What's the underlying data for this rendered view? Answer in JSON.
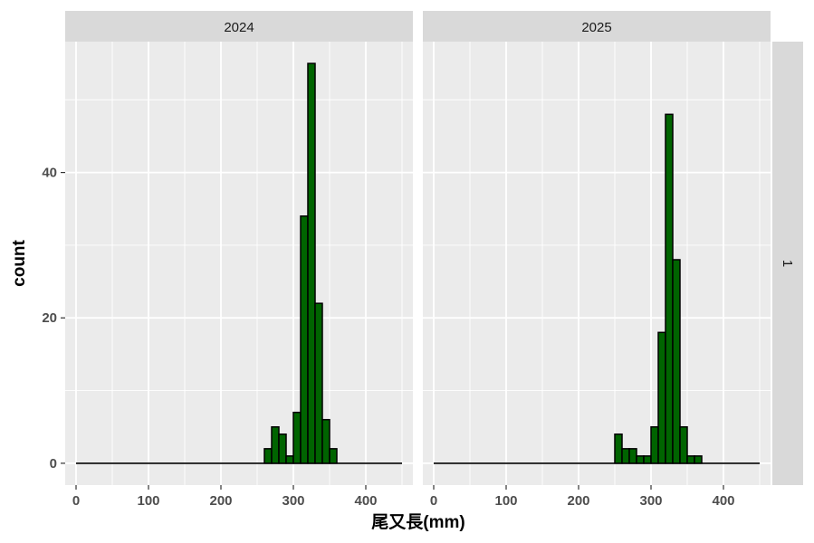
{
  "chart_data": {
    "type": "bar",
    "subtype": "histogram",
    "xlabel": "尾又長(mm)",
    "ylabel": "count",
    "xlim": [
      -15,
      465
    ],
    "ylim": [
      -3,
      58
    ],
    "x_ticks": [
      0,
      100,
      200,
      300,
      400
    ],
    "y_ticks": [
      0,
      20,
      40
    ],
    "bin_width": 10,
    "bins_x": [
      0,
      450
    ],
    "grid": true,
    "legend": "none",
    "row_strip": "1",
    "colors": {
      "fill": "#006400",
      "outline": "#000000",
      "panel": "#ebebeb",
      "strip": "#d9d9d9",
      "grid": "#ffffff"
    },
    "panels": [
      {
        "label": "2024",
        "bars": [
          {
            "x0": 260,
            "x1": 270,
            "count": 2
          },
          {
            "x0": 270,
            "x1": 280,
            "count": 5
          },
          {
            "x0": 280,
            "x1": 290,
            "count": 4
          },
          {
            "x0": 290,
            "x1": 300,
            "count": 1
          },
          {
            "x0": 300,
            "x1": 310,
            "count": 7
          },
          {
            "x0": 310,
            "x1": 320,
            "count": 34
          },
          {
            "x0": 320,
            "x1": 330,
            "count": 55
          },
          {
            "x0": 330,
            "x1": 340,
            "count": 22
          },
          {
            "x0": 340,
            "x1": 350,
            "count": 6
          },
          {
            "x0": 350,
            "x1": 360,
            "count": 2
          }
        ]
      },
      {
        "label": "2025",
        "bars": [
          {
            "x0": 250,
            "x1": 260,
            "count": 4
          },
          {
            "x0": 260,
            "x1": 270,
            "count": 2
          },
          {
            "x0": 270,
            "x1": 280,
            "count": 2
          },
          {
            "x0": 280,
            "x1": 290,
            "count": 1
          },
          {
            "x0": 290,
            "x1": 300,
            "count": 1
          },
          {
            "x0": 300,
            "x1": 310,
            "count": 5
          },
          {
            "x0": 310,
            "x1": 320,
            "count": 18
          },
          {
            "x0": 320,
            "x1": 330,
            "count": 48
          },
          {
            "x0": 330,
            "x1": 340,
            "count": 28
          },
          {
            "x0": 340,
            "x1": 350,
            "count": 5
          },
          {
            "x0": 350,
            "x1": 360,
            "count": 1
          },
          {
            "x0": 360,
            "x1": 370,
            "count": 1
          }
        ]
      }
    ]
  }
}
